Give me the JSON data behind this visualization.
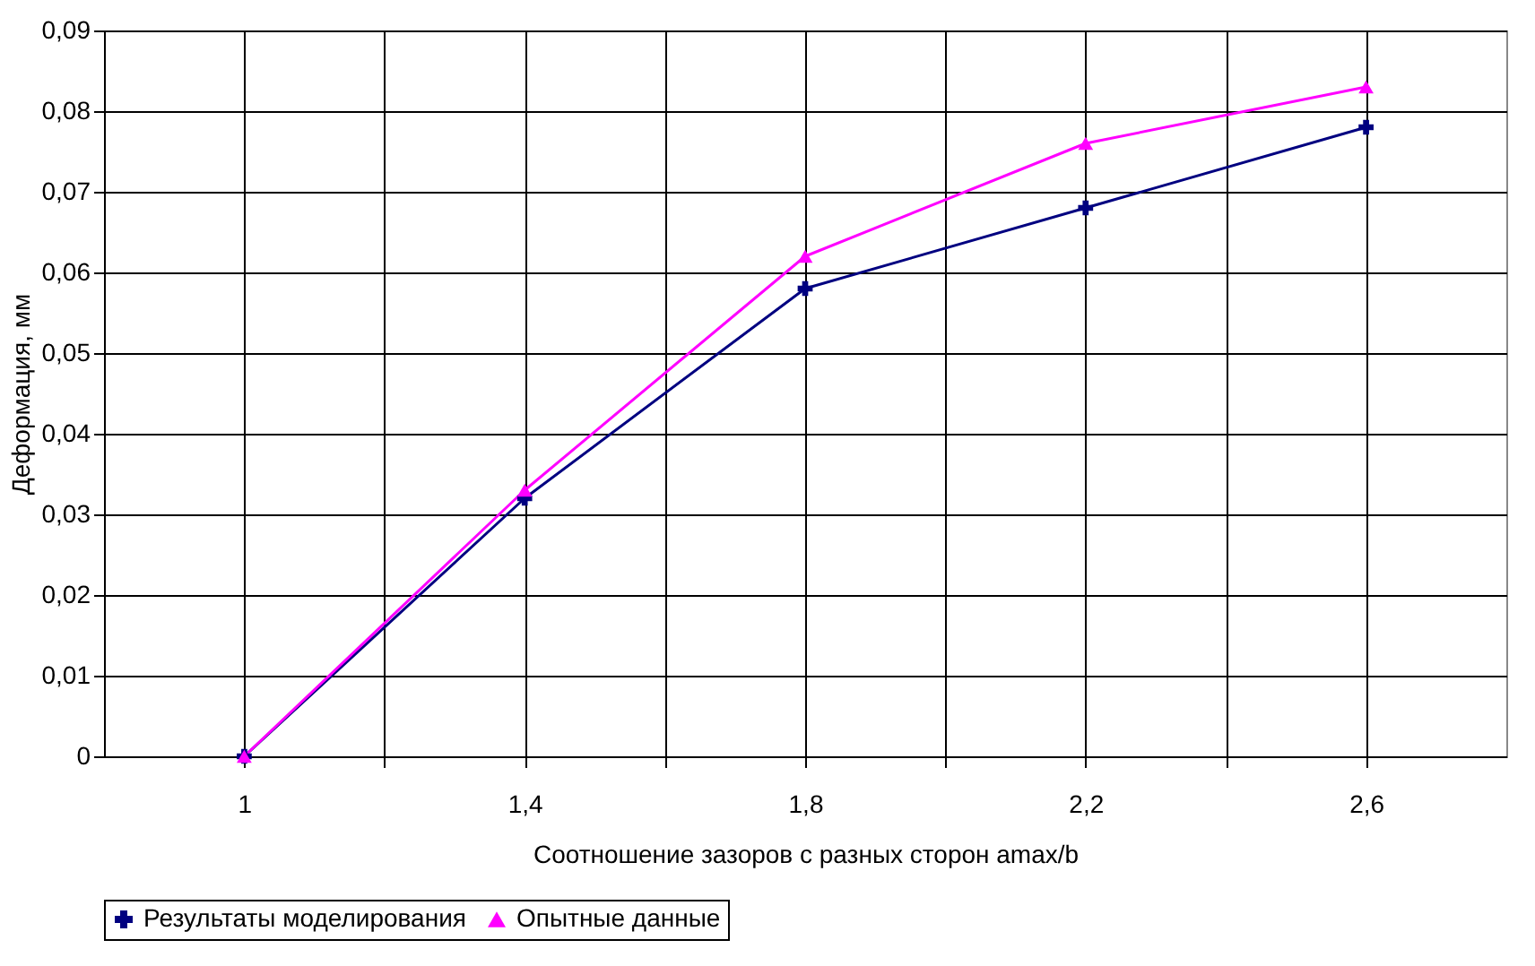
{
  "chart_data": {
    "type": "line",
    "xlabel": "Соотношение зазоров с разных сторон amax/b",
    "ylabel": "Деформация, мм",
    "x": [
      1,
      1.4,
      1.8,
      2.2,
      2.6
    ],
    "series": [
      {
        "name": "Результаты моделирования",
        "color": "#000080",
        "marker": "cross",
        "values": [
          0,
          0.032,
          0.058,
          0.068,
          0.078
        ]
      },
      {
        "name": "Опытные данные",
        "color": "#ff00ff",
        "marker": "triangle",
        "values": [
          0,
          0.033,
          0.062,
          0.076,
          0.083
        ]
      }
    ],
    "xlim": [
      0.8,
      2.8
    ],
    "xticks": [
      {
        "value": 1,
        "label": "1"
      },
      {
        "value": 1.2,
        "label": null
      },
      {
        "value": 1.4,
        "label": "1,4"
      },
      {
        "value": 1.6,
        "label": null
      },
      {
        "value": 1.8,
        "label": "1,8"
      },
      {
        "value": 2.0,
        "label": null
      },
      {
        "value": 2.2,
        "label": "2,2"
      },
      {
        "value": 2.4,
        "label": null
      },
      {
        "value": 2.6,
        "label": "2,6"
      }
    ],
    "ylim": [
      0,
      0.09
    ],
    "yticks": [
      {
        "value": 0,
        "label": "0"
      },
      {
        "value": 0.01,
        "label": "0,01"
      },
      {
        "value": 0.02,
        "label": "0,02"
      },
      {
        "value": 0.03,
        "label": "0,03"
      },
      {
        "value": 0.04,
        "label": "0,04"
      },
      {
        "value": 0.05,
        "label": "0,05"
      },
      {
        "value": 0.06,
        "label": "0,06"
      },
      {
        "value": 0.07,
        "label": "0,07"
      },
      {
        "value": 0.08,
        "label": "0,08"
      },
      {
        "value": 0.09,
        "label": "0,09"
      }
    ],
    "grid": true,
    "legend": "bottom",
    "line_style": "solid"
  }
}
